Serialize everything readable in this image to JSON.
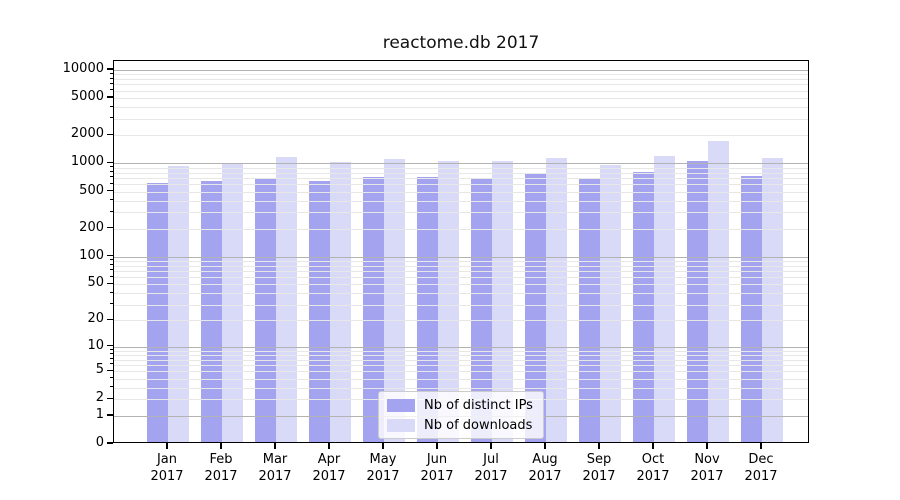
{
  "chart_data": {
    "type": "bar",
    "title": "reactome.db 2017",
    "categories": [
      "Jan",
      "Feb",
      "Mar",
      "Apr",
      "May",
      "Jun",
      "Jul",
      "Aug",
      "Sep",
      "Oct",
      "Nov",
      "Dec"
    ],
    "xtick_second_line": "2017",
    "series": [
      {
        "name": "Nb of distinct IPs",
        "color": "#a3a3f0",
        "values": [
          590,
          615,
          650,
          620,
          680,
          680,
          645,
          760,
          650,
          770,
          1000,
          700
        ]
      },
      {
        "name": "Nb of downloads",
        "color": "#d9d9f8",
        "values": [
          890,
          930,
          1120,
          990,
          1050,
          1010,
          1020,
          1080,
          920,
          1150,
          1650,
          1080
        ]
      }
    ],
    "yscale": "log1p",
    "yticks": [
      0,
      1,
      2,
      5,
      10,
      20,
      50,
      100,
      200,
      500,
      1000,
      2000,
      5000,
      10000
    ],
    "major_grid_values": [
      1,
      10,
      100,
      1000,
      10000
    ],
    "ylim": [
      0,
      12500
    ],
    "grid": "major+minor, drawn over bars",
    "legend_position": "lower center",
    "colors": {
      "major_grid": "#b3b3b3",
      "minor_grid": "#e7e7e7",
      "axis": "#000000"
    }
  }
}
